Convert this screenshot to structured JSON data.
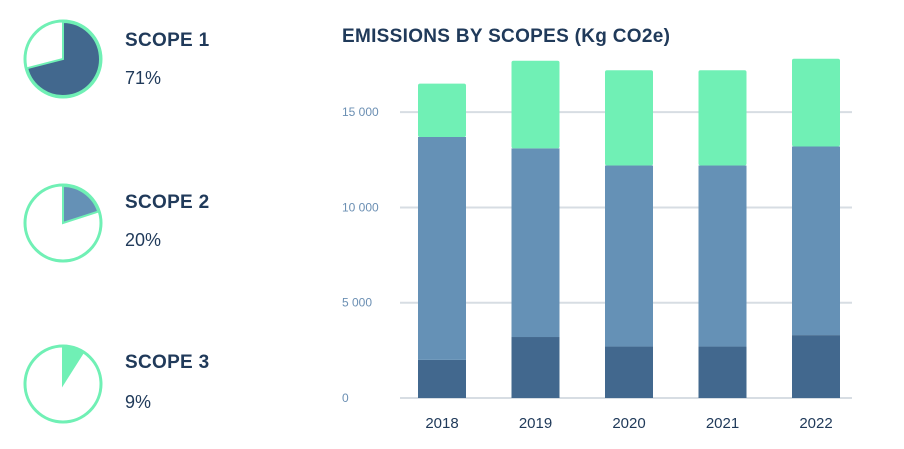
{
  "colors": {
    "scope1": "#42688e",
    "scope2": "#6591b6",
    "scope3": "#70f0b5",
    "text": "#203a5a",
    "tick": "#6b8fb3",
    "grid": "#d7dde3"
  },
  "scopes": [
    {
      "label": "SCOPE 1",
      "percent": "71%",
      "fraction": 0.71
    },
    {
      "label": "SCOPE 2",
      "percent": "20%",
      "fraction": 0.2
    },
    {
      "label": "SCOPE 3",
      "percent": "9%",
      "fraction": 0.09
    }
  ],
  "chart_data": {
    "type": "bar",
    "stacked": true,
    "title": "EMISSIONS BY SCOPES (Kg CO2e)",
    "categories": [
      "2018",
      "2019",
      "2020",
      "2021",
      "2022"
    ],
    "series": [
      {
        "name": "Scope 1",
        "values": [
          2000,
          3200,
          2700,
          2700,
          3300
        ]
      },
      {
        "name": "Scope 2",
        "values": [
          11700,
          9900,
          9500,
          9500,
          9900
        ]
      },
      {
        "name": "Scope 3",
        "values": [
          2800,
          4600,
          5000,
          5000,
          4600
        ]
      }
    ],
    "ylim": [
      0,
      18000
    ],
    "yticks": [
      0,
      5000,
      10000,
      15000
    ],
    "ytick_labels": [
      "0",
      "5 000",
      "10 000",
      "15 000"
    ],
    "xlabel": "",
    "ylabel": "",
    "grid": true
  }
}
